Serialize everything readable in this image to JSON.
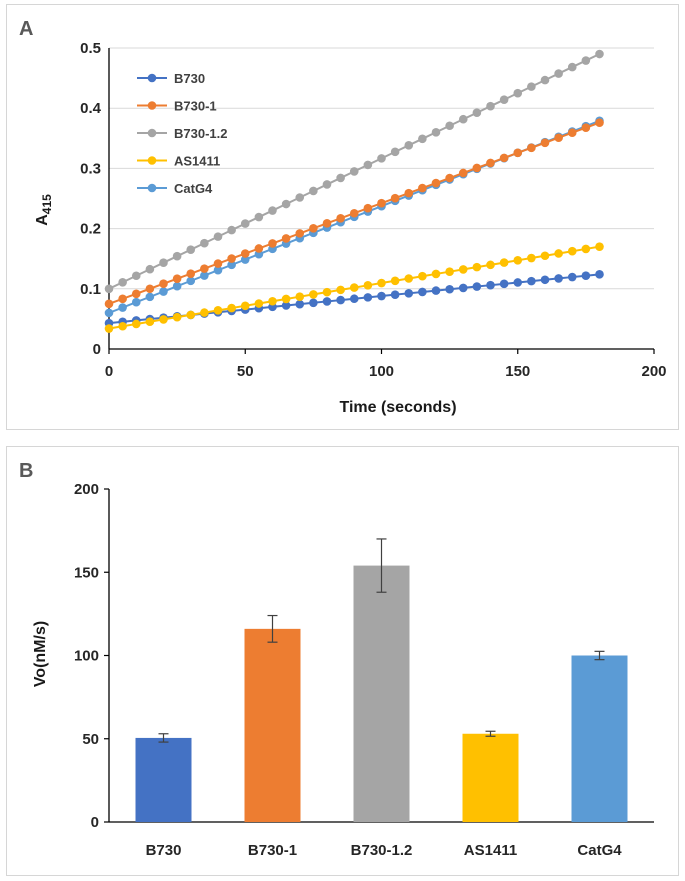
{
  "chart_data": [
    {
      "type": "line",
      "panel_label": "A",
      "xlabel": "Time (seconds)",
      "ylabel_main": "A",
      "ylabel_sub": "415",
      "xlim": [
        0,
        200
      ],
      "ylim": [
        0,
        0.5
      ],
      "xticks": [
        0,
        50,
        100,
        150,
        200
      ],
      "yticks": [
        0,
        0.1,
        0.2,
        0.3,
        0.4,
        0.5
      ],
      "xtick_labels": [
        "0",
        "50",
        "100",
        "150",
        "200"
      ],
      "ytick_labels": [
        "0",
        "0.1",
        "0.2",
        "0.3",
        "0.4",
        "0.5"
      ],
      "x_start": 0,
      "x_step": 5,
      "x_end": 180,
      "legend_position": "top-left",
      "series": [
        {
          "name": "B730",
          "color": "#4472C4",
          "start": 0.043,
          "end": 0.124
        },
        {
          "name": "B730-1",
          "color": "#ED7D31",
          "start": 0.075,
          "end": 0.376
        },
        {
          "name": "B730-1.2",
          "color": "#A5A5A5",
          "start": 0.1,
          "end": 0.49
        },
        {
          "name": "AS1411",
          "color": "#FFC000",
          "start": 0.034,
          "end": 0.17
        },
        {
          "name": "CatG4",
          "color": "#5B9BD5",
          "start": 0.06,
          "end": 0.379
        }
      ]
    },
    {
      "type": "bar",
      "panel_label": "B",
      "ylabel": "Vo(nM/s)",
      "xlabel": "",
      "ylim": [
        0,
        200
      ],
      "yticks": [
        0,
        50,
        100,
        150,
        200
      ],
      "ytick_labels": [
        "0",
        "50",
        "100",
        "150",
        "200"
      ],
      "categories": [
        "B730",
        "B730-1",
        "B730-1.2",
        "AS1411",
        "CatG4"
      ],
      "values": [
        50.5,
        116,
        154,
        53,
        100
      ],
      "errors": [
        2.5,
        8,
        16,
        1.5,
        2.5
      ],
      "colors": [
        "#4472C4",
        "#ED7D31",
        "#A5A5A5",
        "#FFC000",
        "#5B9BD5"
      ]
    }
  ]
}
